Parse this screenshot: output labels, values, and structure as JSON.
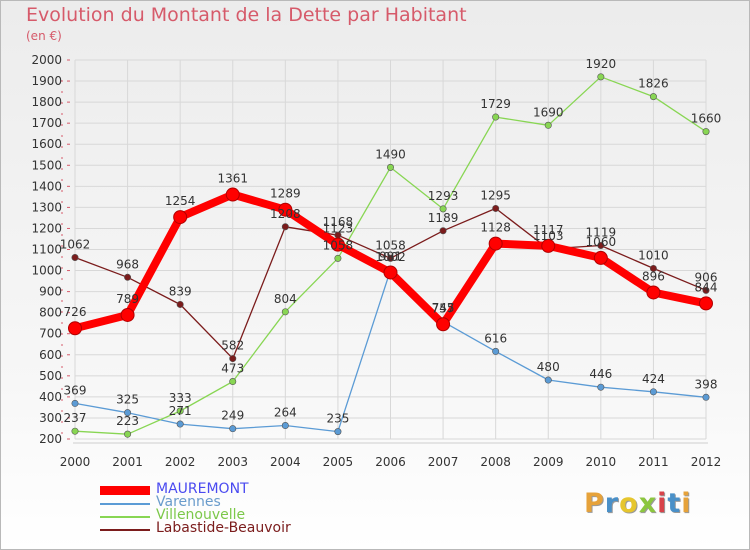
{
  "title": "Evolution du Montant de la Dette par Habitant",
  "unit": "(en €)",
  "logo": {
    "text": "Proxiti",
    "colors": [
      "#e6a23a",
      "#4a90c8",
      "#e6c62e",
      "#8cc63f",
      "#d8434a",
      "#4a90c8",
      "#e6a23a"
    ]
  },
  "chart_data": {
    "type": "line",
    "x": [
      "2000",
      "2001",
      "2002",
      "2003",
      "2004",
      "2005",
      "2006",
      "2007",
      "2008",
      "2009",
      "2010",
      "2011",
      "2012"
    ],
    "ylim": [
      200,
      2000
    ],
    "yticks": [
      200,
      300,
      400,
      500,
      600,
      700,
      800,
      900,
      1000,
      1100,
      1200,
      1300,
      1400,
      1500,
      1600,
      1700,
      1800,
      1900,
      2000
    ],
    "grid": true,
    "legend_position": "bottom-left",
    "series": [
      {
        "name": "MAUREMONT",
        "color": "#ff0000",
        "label_color": "#4a4af0",
        "emphasis": true,
        "values": [
          726,
          789,
          1254,
          1361,
          1289,
          1123,
          991,
          745,
          1128,
          1117,
          1060,
          896,
          844
        ]
      },
      {
        "name": "Varennes",
        "color": "#5b9bd5",
        "label_color": "#6a9ccc",
        "values": [
          369,
          325,
          271,
          249,
          264,
          235,
          1002,
          757,
          616,
          480,
          446,
          424,
          398
        ]
      },
      {
        "name": "Villenouvelle",
        "color": "#88d653",
        "label_color": "#7cc84a",
        "values": [
          237,
          223,
          333,
          473,
          804,
          1058,
          1490,
          1293,
          1729,
          1690,
          1920,
          1826,
          1660
        ]
      },
      {
        "name": "Labastide-Beauvoir",
        "color": "#7b1c1c",
        "label_color": "#7b1c1c",
        "values": [
          1062,
          968,
          839,
          582,
          1208,
          1168,
          1058,
          1189,
          1295,
          1103,
          1119,
          1010,
          906
        ]
      }
    ]
  }
}
